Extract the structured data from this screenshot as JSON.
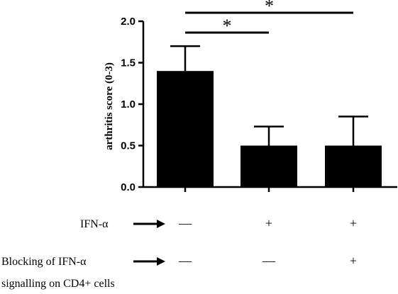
{
  "chart_data": {
    "type": "bar",
    "categories": [
      "",
      "",
      ""
    ],
    "values": [
      1.4,
      0.5,
      0.5
    ],
    "errors": [
      0.3,
      0.23,
      0.35
    ],
    "title": "",
    "xlabel": "",
    "ylabel": "arthritis score (0-3)",
    "ylim": [
      0,
      2.0
    ],
    "yticks": [
      "0.0",
      "0.5",
      "1.0",
      "1.5",
      "2.0"
    ],
    "grid": false,
    "bar_color": "#000000",
    "significance": [
      {
        "from": 0,
        "to": 2,
        "label": "*"
      },
      {
        "from": 0,
        "to": 1,
        "label": "*"
      }
    ]
  },
  "conditions": [
    {
      "label": "IFN-α",
      "label_line2": "",
      "symbols": [
        "—",
        "+",
        "+"
      ]
    },
    {
      "label": "Blocking of IFN-α",
      "label_line2": "signalling on CD4+ cells",
      "symbols": [
        "—",
        "—",
        "+"
      ]
    }
  ],
  "arrow_icon": "right-arrow-icon"
}
